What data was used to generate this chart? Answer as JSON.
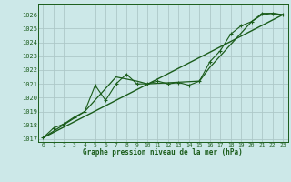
{
  "title": "Graphe pression niveau de la mer (hPa)",
  "bg_color": "#cce8e8",
  "grid_color": "#adc8c8",
  "line_color": "#1a5c1a",
  "xlim": [
    -0.5,
    23.5
  ],
  "ylim": [
    1016.8,
    1026.8
  ],
  "yticks": [
    1017,
    1018,
    1019,
    1020,
    1021,
    1022,
    1023,
    1024,
    1025,
    1026
  ],
  "xtick_labels": [
    "0",
    "1",
    "2",
    "3",
    "4",
    "5",
    "6",
    "7",
    "8",
    "9",
    "10",
    "11",
    "12",
    "13",
    "14",
    "15",
    "16",
    "17",
    "18",
    "19",
    "20",
    "21",
    "22",
    "23"
  ],
  "series1_x": [
    0,
    1,
    2,
    3,
    4,
    5,
    6,
    7,
    8,
    9,
    10,
    11,
    12,
    13,
    14,
    15,
    16,
    17,
    18,
    19,
    20,
    21,
    22,
    23
  ],
  "series1_y": [
    1017.1,
    1017.8,
    1018.1,
    1018.6,
    1019.0,
    1020.9,
    1019.8,
    1021.0,
    1021.7,
    1021.0,
    1021.0,
    1021.2,
    1021.0,
    1021.1,
    1020.9,
    1021.2,
    1022.6,
    1023.4,
    1024.6,
    1025.2,
    1025.5,
    1026.1,
    1026.1,
    1026.0
  ],
  "series2_x": [
    0,
    23
  ],
  "series2_y": [
    1017.1,
    1026.0
  ],
  "series3_x": [
    0,
    4,
    7,
    9,
    10,
    15,
    16,
    20,
    21,
    22,
    23
  ],
  "series3_y": [
    1017.1,
    1019.0,
    1021.5,
    1021.2,
    1021.0,
    1021.2,
    1022.2,
    1025.5,
    1026.0,
    1026.1,
    1026.0
  ]
}
